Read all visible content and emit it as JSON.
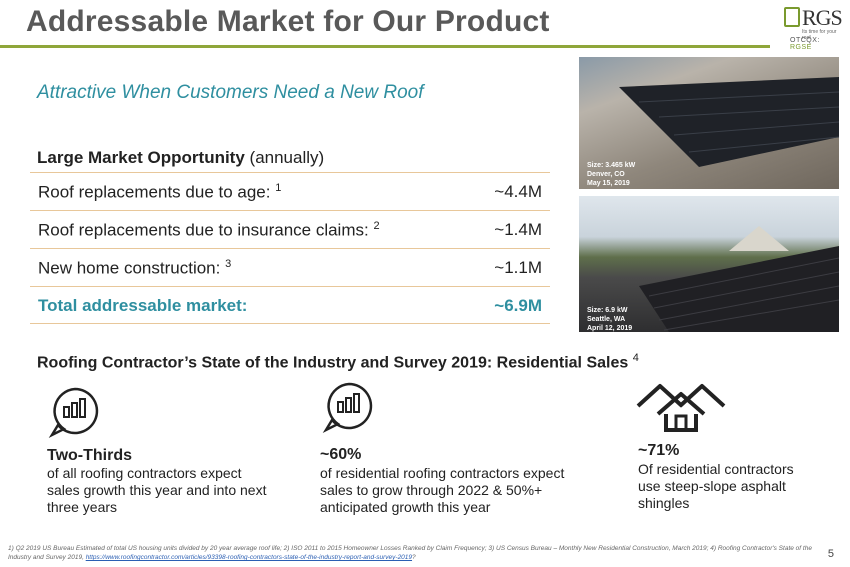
{
  "header": {
    "title": "Addressable Market for Our Product",
    "logo_text": "RGS",
    "logo_tagline": "Its time for your roof",
    "ticker_prefix": "OTCQX:",
    "ticker": "RGSE"
  },
  "subtitle": "Attractive When Customers Need a New Roof",
  "market_table": {
    "heading_bold": "Large Market Opportunity",
    "heading_rest": " (annually)",
    "rows": [
      {
        "label": "Roof replacements due to age: ",
        "sup": "1",
        "value": "~4.4M"
      },
      {
        "label": "Roof replacements due to insurance claims: ",
        "sup": "2",
        "value": "~1.4M"
      },
      {
        "label": "New home construction: ",
        "sup": "3",
        "value": "~1.1M"
      }
    ],
    "total": {
      "label": "Total addressable market:",
      "value": "~6.9M"
    }
  },
  "photos": [
    {
      "caption_line1": "Size: 3.465 kW",
      "caption_line2": "Denver, CO",
      "caption_line3": "May 15, 2019"
    },
    {
      "caption_line1": "Size: 6.9 kW",
      "caption_line2": "Seattle, WA",
      "caption_line3": "April 12, 2019"
    }
  ],
  "survey": {
    "heading": "Roofing Contractor’s State of the Industry and Survey 2019: Residential Sales",
    "heading_sup": "4",
    "columns": [
      {
        "icon": "bar-chart-bubble-icon",
        "title": "Two-Thirds",
        "text": "of all roofing contractors expect sales growth this year and into next three years"
      },
      {
        "icon": "bar-chart-bubble-icon",
        "title": "~60%",
        "text": "of residential roofing contractors expect sales to grow through 2022 & 50%+ anticipated growth this year"
      },
      {
        "icon": "houses-icon",
        "title": "~71%",
        "text": "Of residential contractors use steep-slope asphalt shingles"
      }
    ]
  },
  "footnote": {
    "text": "1) Q2 2019 US Bureau Estimated of total US housing units divided by 20 year average roof life; 2) ISO 2011 to 2015 Homeowner Losses Ranked by Claim Frequency; 3) US Census Bureau – Monthly New Residential Construction, March 2019; 4) Roofing Contractor's State of the Industry and Survey 2019, ",
    "link": "https://www.roofingcontractor.com/articles/93398-roofing-contractors-state-of-the-industry-report-and-survey-2019",
    "suffix": "?"
  },
  "page_number": "5",
  "colors": {
    "accent_green": "#8fa63a",
    "accent_teal": "#2f8fa0",
    "rule_tan": "#e8c79a"
  }
}
